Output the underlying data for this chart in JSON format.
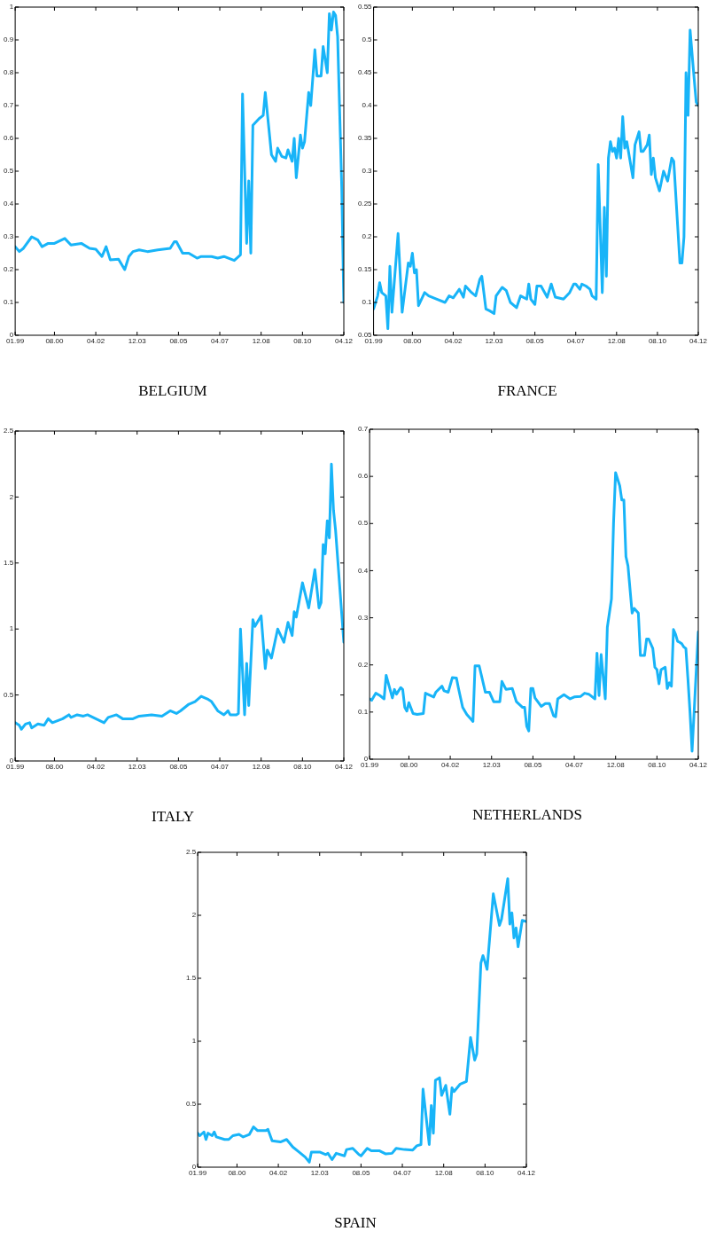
{
  "chart_data": [
    {
      "type": "line",
      "title": "BELGIUM",
      "grid": false,
      "legend": false,
      "marker": "none",
      "line_style": "solid",
      "xlim": [
        "1999-01",
        "2012-04"
      ],
      "xticks": [
        {
          "value": "1999-01",
          "label": "01.99"
        },
        {
          "value": "2000-08",
          "label": "08.00"
        },
        {
          "value": "2002-04",
          "label": "04.02"
        },
        {
          "value": "2003-12",
          "label": "12.03"
        },
        {
          "value": "2005-08",
          "label": "08.05"
        },
        {
          "value": "2007-04",
          "label": "04.07"
        },
        {
          "value": "2008-12",
          "label": "12.08"
        },
        {
          "value": "2010-08",
          "label": "08.10"
        },
        {
          "value": "2012-04",
          "label": "04.12"
        }
      ],
      "ylim": [
        0,
        1
      ],
      "yticks": [
        0,
        0.1,
        0.2,
        0.3,
        0.4,
        0.5,
        0.6,
        0.7,
        0.8,
        0.9,
        1
      ],
      "x": [
        "1999-01",
        "1999-03",
        "1999-05",
        "1999-09",
        "1999-12",
        "2000-02",
        "2000-05",
        "2000-08",
        "2001-01",
        "2001-04",
        "2001-09",
        "2002-01",
        "2002-04",
        "2002-07",
        "2002-09",
        "2002-11",
        "2003-03",
        "2003-06",
        "2003-08",
        "2003-10",
        "2004-01",
        "2004-05",
        "2004-10",
        "2005-04",
        "2005-06",
        "2005-07",
        "2005-10",
        "2006-01",
        "2006-05",
        "2006-07",
        "2006-12",
        "2007-03",
        "2007-06",
        "2007-11",
        "2008-02",
        "2008-03",
        "2008-05",
        "2008-06",
        "2008-07",
        "2008-08",
        "2008-11",
        "2009-01",
        "2009-02",
        "2009-05",
        "2009-07",
        "2009-08",
        "2009-10",
        "2009-12",
        "2010-01",
        "2010-03",
        "2010-04",
        "2010-05",
        "2010-07",
        "2010-08",
        "2010-09",
        "2010-11",
        "2010-12",
        "2011-02",
        "2011-03",
        "2011-05",
        "2011-06",
        "2011-08",
        "2011-09",
        "2011-10",
        "2011-11",
        "2011-12",
        "2012-01",
        "2012-03",
        "2012-04"
      ],
      "series": [
        {
          "color": "#18b4f8",
          "values": [
            0.27,
            0.255,
            0.265,
            0.3,
            0.29,
            0.27,
            0.28,
            0.28,
            0.295,
            0.275,
            0.28,
            0.265,
            0.262,
            0.24,
            0.27,
            0.23,
            0.232,
            0.2,
            0.24,
            0.255,
            0.26,
            0.255,
            0.26,
            0.265,
            0.285,
            0.285,
            0.25,
            0.25,
            0.235,
            0.24,
            0.24,
            0.235,
            0.24,
            0.228,
            0.245,
            0.735,
            0.28,
            0.47,
            0.25,
            0.64,
            0.66,
            0.67,
            0.74,
            0.55,
            0.53,
            0.57,
            0.545,
            0.54,
            0.565,
            0.53,
            0.6,
            0.48,
            0.61,
            0.57,
            0.59,
            0.74,
            0.7,
            0.87,
            0.79,
            0.79,
            0.88,
            0.8,
            0.98,
            0.93,
            0.985,
            0.975,
            0.91,
            0.45,
            0.1
          ]
        }
      ]
    },
    {
      "type": "line",
      "title": "FRANCE",
      "grid": false,
      "legend": false,
      "marker": "none",
      "line_style": "solid",
      "xlim": [
        "1999-01",
        "2012-04"
      ],
      "xticks": [
        {
          "value": "1999-01",
          "label": "01.99"
        },
        {
          "value": "2000-08",
          "label": "08.00"
        },
        {
          "value": "2002-04",
          "label": "04.02"
        },
        {
          "value": "2003-12",
          "label": "12.03"
        },
        {
          "value": "2005-08",
          "label": "08.05"
        },
        {
          "value": "2007-04",
          "label": "04.07"
        },
        {
          "value": "2008-12",
          "label": "12.08"
        },
        {
          "value": "2010-08",
          "label": "08.10"
        },
        {
          "value": "2012-04",
          "label": "04.12"
        }
      ],
      "ylim": [
        0.05,
        0.55
      ],
      "yticks": [
        0.05,
        0.1,
        0.15,
        0.2,
        0.25,
        0.3,
        0.35,
        0.4,
        0.45,
        0.5,
        0.55
      ],
      "x": [
        "1999-01",
        "1999-03",
        "1999-04",
        "1999-05",
        "1999-07",
        "1999-08",
        "1999-09",
        "1999-10",
        "2000-01",
        "2000-03",
        "2000-06",
        "2000-07",
        "2000-08",
        "2000-09",
        "2000-10",
        "2000-11",
        "2001-02",
        "2001-04",
        "2001-08",
        "2001-12",
        "2002-02",
        "2002-04",
        "2002-07",
        "2002-09",
        "2002-10",
        "2003-01",
        "2003-03",
        "2003-05",
        "2003-06",
        "2003-08",
        "2003-10",
        "2003-12",
        "2004-01",
        "2004-04",
        "2004-06",
        "2004-08",
        "2004-11",
        "2005-01",
        "2005-04",
        "2005-05",
        "2005-06",
        "2005-08",
        "2005-09",
        "2005-11",
        "2006-02",
        "2006-04",
        "2006-06",
        "2006-10",
        "2007-01",
        "2007-03",
        "2007-04",
        "2007-06",
        "2007-07",
        "2007-09",
        "2007-11",
        "2007-12",
        "2008-02",
        "2008-03",
        "2008-05",
        "2008-06",
        "2008-07",
        "2008-08",
        "2008-09",
        "2008-10",
        "2008-11",
        "2008-12",
        "2009-01",
        "2009-02",
        "2009-03",
        "2009-04",
        "2009-05",
        "2009-08",
        "2009-09",
        "2009-11",
        "2009-12",
        "2010-01",
        "2010-03",
        "2010-04",
        "2010-05",
        "2010-06",
        "2010-07",
        "2010-09",
        "2010-11",
        "2011-01",
        "2011-03",
        "2011-04",
        "2011-07",
        "2011-08",
        "2011-09",
        "2011-10",
        "2011-11",
        "2011-12",
        "2012-02",
        "2012-03",
        "2012-04"
      ],
      "series": [
        {
          "color": "#18b4f8",
          "values": [
            0.09,
            0.11,
            0.13,
            0.115,
            0.11,
            0.06,
            0.155,
            0.085,
            0.205,
            0.085,
            0.16,
            0.155,
            0.175,
            0.145,
            0.15,
            0.095,
            0.115,
            0.11,
            0.105,
            0.1,
            0.11,
            0.107,
            0.12,
            0.108,
            0.125,
            0.115,
            0.11,
            0.135,
            0.14,
            0.09,
            0.087,
            0.083,
            0.11,
            0.123,
            0.118,
            0.1,
            0.092,
            0.11,
            0.105,
            0.128,
            0.105,
            0.097,
            0.125,
            0.125,
            0.108,
            0.128,
            0.108,
            0.105,
            0.115,
            0.128,
            0.128,
            0.12,
            0.128,
            0.125,
            0.12,
            0.11,
            0.105,
            0.31,
            0.115,
            0.245,
            0.14,
            0.32,
            0.345,
            0.33,
            0.335,
            0.32,
            0.35,
            0.32,
            0.383,
            0.335,
            0.345,
            0.29,
            0.34,
            0.36,
            0.33,
            0.33,
            0.34,
            0.355,
            0.295,
            0.32,
            0.29,
            0.27,
            0.3,
            0.285,
            0.32,
            0.315,
            0.16,
            0.16,
            0.2,
            0.45,
            0.385,
            0.515,
            0.44,
            0.405,
            0.4
          ]
        }
      ]
    },
    {
      "type": "line",
      "title": "ITALY",
      "grid": false,
      "legend": false,
      "marker": "none",
      "line_style": "solid",
      "xlim": [
        "1999-01",
        "2012-04"
      ],
      "xticks": [
        {
          "value": "1999-01",
          "label": "01.99"
        },
        {
          "value": "2000-08",
          "label": "08.00"
        },
        {
          "value": "2002-04",
          "label": "04.02"
        },
        {
          "value": "2003-12",
          "label": "12.03"
        },
        {
          "value": "2005-08",
          "label": "08.05"
        },
        {
          "value": "2007-04",
          "label": "04.07"
        },
        {
          "value": "2008-12",
          "label": "12.08"
        },
        {
          "value": "2010-08",
          "label": "08.10"
        },
        {
          "value": "2012-04",
          "label": "04.12"
        }
      ],
      "ylim": [
        0,
        2.5
      ],
      "yticks": [
        0,
        0.5,
        1,
        1.5,
        2,
        2.5
      ],
      "x": [
        "1999-01",
        "1999-03",
        "1999-04",
        "1999-06",
        "1999-08",
        "1999-09",
        "1999-12",
        "2000-03",
        "2000-05",
        "2000-07",
        "2000-12",
        "2001-03",
        "2001-04",
        "2001-07",
        "2001-10",
        "2001-12",
        "2002-04",
        "2002-08",
        "2002-10",
        "2003-02",
        "2003-05",
        "2003-10",
        "2004-01",
        "2004-07",
        "2004-12",
        "2005-04",
        "2005-07",
        "2005-09",
        "2006-01",
        "2006-04",
        "2006-07",
        "2006-10",
        "2006-12",
        "2007-03",
        "2007-06",
        "2007-08",
        "2007-09",
        "2007-12",
        "2008-01",
        "2008-02",
        "2008-04",
        "2008-05",
        "2008-06",
        "2008-08",
        "2008-09",
        "2008-12",
        "2009-02",
        "2009-03",
        "2009-05",
        "2009-08",
        "2009-11",
        "2010-01",
        "2010-03",
        "2010-04",
        "2010-05",
        "2010-08",
        "2010-11",
        "2011-02",
        "2011-04",
        "2011-05",
        "2011-06",
        "2011-07",
        "2011-08",
        "2011-09",
        "2011-10",
        "2011-11",
        "2011-12",
        "2012-04"
      ],
      "series": [
        {
          "color": "#18b4f8",
          "values": [
            0.29,
            0.27,
            0.24,
            0.28,
            0.29,
            0.25,
            0.28,
            0.27,
            0.32,
            0.29,
            0.32,
            0.35,
            0.33,
            0.35,
            0.34,
            0.35,
            0.32,
            0.29,
            0.33,
            0.35,
            0.32,
            0.32,
            0.34,
            0.35,
            0.34,
            0.38,
            0.36,
            0.38,
            0.43,
            0.45,
            0.49,
            0.47,
            0.45,
            0.38,
            0.35,
            0.38,
            0.35,
            0.35,
            0.36,
            1.0,
            0.35,
            0.74,
            0.42,
            1.07,
            1.02,
            1.1,
            0.7,
            0.84,
            0.78,
            1.0,
            0.9,
            1.05,
            0.95,
            1.13,
            1.09,
            1.35,
            1.16,
            1.45,
            1.16,
            1.2,
            1.64,
            1.57,
            1.82,
            1.69,
            2.25,
            1.9,
            1.75,
            0.9
          ]
        }
      ]
    },
    {
      "type": "line",
      "title": "NETHERLANDS",
      "grid": false,
      "legend": false,
      "marker": "none",
      "line_style": "solid",
      "xlim": [
        "1999-01",
        "2012-04"
      ],
      "xticks": [
        {
          "value": "1999-01",
          "label": "01.99"
        },
        {
          "value": "2000-08",
          "label": "08.00"
        },
        {
          "value": "2002-04",
          "label": "04.02"
        },
        {
          "value": "2003-12",
          "label": "12.03"
        },
        {
          "value": "2005-08",
          "label": "08.05"
        },
        {
          "value": "2007-04",
          "label": "04.07"
        },
        {
          "value": "2008-12",
          "label": "12.08"
        },
        {
          "value": "2010-08",
          "label": "08.10"
        },
        {
          "value": "2012-04",
          "label": "04.12"
        }
      ],
      "ylim": [
        0,
        0.7
      ],
      "yticks": [
        0,
        0.1,
        0.2,
        0.3,
        0.4,
        0.5,
        0.6,
        0.7
      ],
      "x": [
        "1999-01",
        "1999-02",
        "1999-04",
        "1999-06",
        "1999-08",
        "1999-09",
        "1999-12",
        "2000-01",
        "2000-02",
        "2000-04",
        "2000-05",
        "2000-06",
        "2000-07",
        "2000-08",
        "2000-10",
        "2000-12",
        "2001-03",
        "2001-04",
        "2001-08",
        "2001-09",
        "2001-12",
        "2002-01",
        "2002-03",
        "2002-05",
        "2002-07",
        "2002-08",
        "2002-10",
        "2002-12",
        "2003-02",
        "2003-03",
        "2003-04",
        "2003-06",
        "2003-09",
        "2003-11",
        "2004-01",
        "2004-04",
        "2004-05",
        "2004-07",
        "2004-10",
        "2004-12",
        "2005-03",
        "2005-04",
        "2005-05",
        "2005-06",
        "2005-07",
        "2005-08",
        "2005-09",
        "2005-12",
        "2006-02",
        "2006-04",
        "2006-06",
        "2006-07",
        "2006-08",
        "2006-11",
        "2007-02",
        "2007-04",
        "2007-07",
        "2007-09",
        "2007-11",
        "2008-02",
        "2008-03",
        "2008-04",
        "2008-05",
        "2008-07",
        "2008-08",
        "2008-10",
        "2008-11",
        "2008-12",
        "2009-02",
        "2009-03",
        "2009-04",
        "2009-05",
        "2009-06",
        "2009-08",
        "2009-09",
        "2009-11",
        "2009-12",
        "2010-02",
        "2010-03",
        "2010-04",
        "2010-06",
        "2010-07",
        "2010-08",
        "2010-09",
        "2010-10",
        "2010-12",
        "2011-01",
        "2011-02",
        "2011-03",
        "2011-04",
        "2011-05",
        "2011-06",
        "2011-07",
        "2011-08",
        "2011-09",
        "2011-10",
        "2011-11",
        "2011-12",
        "2012-01",
        "2012-04"
      ],
      "series": [
        {
          "color": "#18b4f8",
          "values": [
            0.128,
            0.125,
            0.14,
            0.135,
            0.128,
            0.178,
            0.13,
            0.148,
            0.138,
            0.152,
            0.148,
            0.11,
            0.102,
            0.12,
            0.097,
            0.095,
            0.097,
            0.14,
            0.132,
            0.142,
            0.155,
            0.145,
            0.142,
            0.173,
            0.172,
            0.15,
            0.11,
            0.095,
            0.085,
            0.08,
            0.198,
            0.198,
            0.142,
            0.142,
            0.122,
            0.122,
            0.165,
            0.148,
            0.15,
            0.122,
            0.11,
            0.11,
            0.07,
            0.06,
            0.15,
            0.15,
            0.13,
            0.112,
            0.118,
            0.118,
            0.092,
            0.09,
            0.128,
            0.137,
            0.128,
            0.132,
            0.133,
            0.14,
            0.138,
            0.128,
            0.225,
            0.135,
            0.222,
            0.128,
            0.28,
            0.34,
            0.5,
            0.608,
            0.58,
            0.55,
            0.55,
            0.43,
            0.41,
            0.31,
            0.32,
            0.31,
            0.22,
            0.22,
            0.255,
            0.255,
            0.235,
            0.195,
            0.19,
            0.16,
            0.19,
            0.195,
            0.15,
            0.162,
            0.155,
            0.275,
            0.265,
            0.25,
            0.248,
            0.245,
            0.238,
            0.235,
            0.17,
            0.1,
            0.017,
            0.27
          ]
        }
      ]
    },
    {
      "type": "line",
      "title": "SPAIN",
      "grid": false,
      "legend": false,
      "marker": "none",
      "line_style": "solid",
      "xlim": [
        "1999-01",
        "2012-04"
      ],
      "xticks": [
        {
          "value": "1999-01",
          "label": "01.99"
        },
        {
          "value": "2000-08",
          "label": "08.00"
        },
        {
          "value": "2002-04",
          "label": "04.02"
        },
        {
          "value": "2003-12",
          "label": "12.03"
        },
        {
          "value": "2005-08",
          "label": "08.05"
        },
        {
          "value": "2007-04",
          "label": "04.07"
        },
        {
          "value": "2008-12",
          "label": "12.08"
        },
        {
          "value": "2010-08",
          "label": "08.10"
        },
        {
          "value": "2012-04",
          "label": "04.12"
        }
      ],
      "ylim": [
        0,
        2.5
      ],
      "yticks": [
        0,
        0.5,
        1,
        1.5,
        2,
        2.5
      ],
      "x": [
        "1999-01",
        "1999-02",
        "1999-04",
        "1999-05",
        "1999-06",
        "1999-08",
        "1999-09",
        "1999-10",
        "2000-02",
        "2000-04",
        "2000-06",
        "2000-09",
        "2000-11",
        "2001-02",
        "2001-04",
        "2001-06",
        "2001-10",
        "2001-11",
        "2002-01",
        "2002-05",
        "2002-08",
        "2002-11",
        "2003-02",
        "2003-05",
        "2003-07",
        "2003-08",
        "2003-12",
        "2004-03",
        "2004-04",
        "2004-06",
        "2004-08",
        "2004-12",
        "2005-01",
        "2005-04",
        "2005-07",
        "2005-08",
        "2005-11",
        "2006-01",
        "2006-05",
        "2006-08",
        "2006-11",
        "2007-01",
        "2007-05",
        "2007-09",
        "2007-11",
        "2008-01",
        "2008-02",
        "2008-05",
        "2008-06",
        "2008-07",
        "2008-08",
        "2008-10",
        "2008-11",
        "2009-01",
        "2009-03",
        "2009-04",
        "2009-05",
        "2009-08",
        "2009-11",
        "2010-01",
        "2010-03",
        "2010-04",
        "2010-06",
        "2010-07",
        "2010-08",
        "2010-09",
        "2010-12",
        "2011-03",
        "2011-04",
        "2011-07",
        "2011-08",
        "2011-09",
        "2011-10",
        "2011-11",
        "2011-12",
        "2012-02",
        "2012-04"
      ],
      "series": [
        {
          "color": "#18b4f8",
          "values": [
            0.27,
            0.25,
            0.28,
            0.22,
            0.27,
            0.25,
            0.28,
            0.24,
            0.22,
            0.22,
            0.25,
            0.26,
            0.24,
            0.26,
            0.32,
            0.29,
            0.29,
            0.3,
            0.21,
            0.2,
            0.22,
            0.16,
            0.12,
            0.08,
            0.04,
            0.12,
            0.12,
            0.1,
            0.11,
            0.06,
            0.11,
            0.09,
            0.14,
            0.15,
            0.1,
            0.09,
            0.15,
            0.13,
            0.13,
            0.105,
            0.11,
            0.15,
            0.14,
            0.135,
            0.17,
            0.18,
            0.62,
            0.18,
            0.49,
            0.27,
            0.69,
            0.71,
            0.57,
            0.65,
            0.42,
            0.63,
            0.6,
            0.66,
            0.68,
            1.03,
            0.85,
            0.9,
            1.62,
            1.68,
            1.63,
            1.57,
            2.17,
            1.92,
            1.97,
            2.29,
            1.93,
            2.02,
            1.82,
            1.9,
            1.75,
            1.96,
            1.95
          ]
        }
      ]
    }
  ]
}
